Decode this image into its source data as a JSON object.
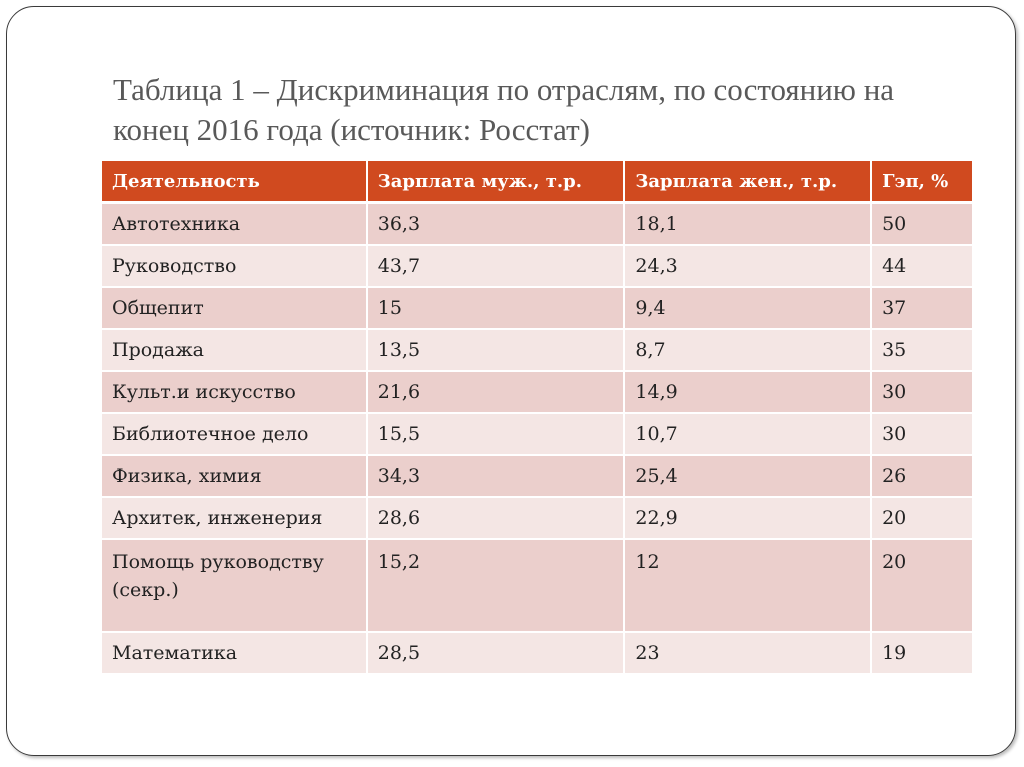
{
  "title": "Таблица 1 – Дискриминация по отраслям, по состоянию на конец 2016 года (источник: Росстат)",
  "colors": {
    "header": "#d04a1f",
    "row_odd": "#ebcfcc",
    "row_even": "#f4e6e4"
  },
  "table": {
    "headers": [
      "Деятельность",
      "Зарплата муж., т.р.",
      "Зарплата жен., т.р.",
      "Гэп, %"
    ],
    "rows": [
      [
        "Автотехника",
        "36,3",
        "18,1",
        "50"
      ],
      [
        "Руководство",
        "43,7",
        "24,3",
        "44"
      ],
      [
        "Общепит",
        "15",
        "9,4",
        "37"
      ],
      [
        "Продажа",
        "13,5",
        "8,7",
        "35"
      ],
      [
        "Культ.и искусство",
        "21,6",
        "14,9",
        "30"
      ],
      [
        "Библиотечное дело",
        "15,5",
        "10,7",
        "30"
      ],
      [
        "Физика, химия",
        "34,3",
        "25,4",
        "26"
      ],
      [
        "Архитек, инженерия",
        "28,6",
        "22,9",
        "20"
      ],
      [
        "Помощь руководству (секр.)",
        "15,2",
        "12",
        "20"
      ],
      [
        "Математика",
        "28,5",
        "23",
        "19"
      ]
    ]
  }
}
